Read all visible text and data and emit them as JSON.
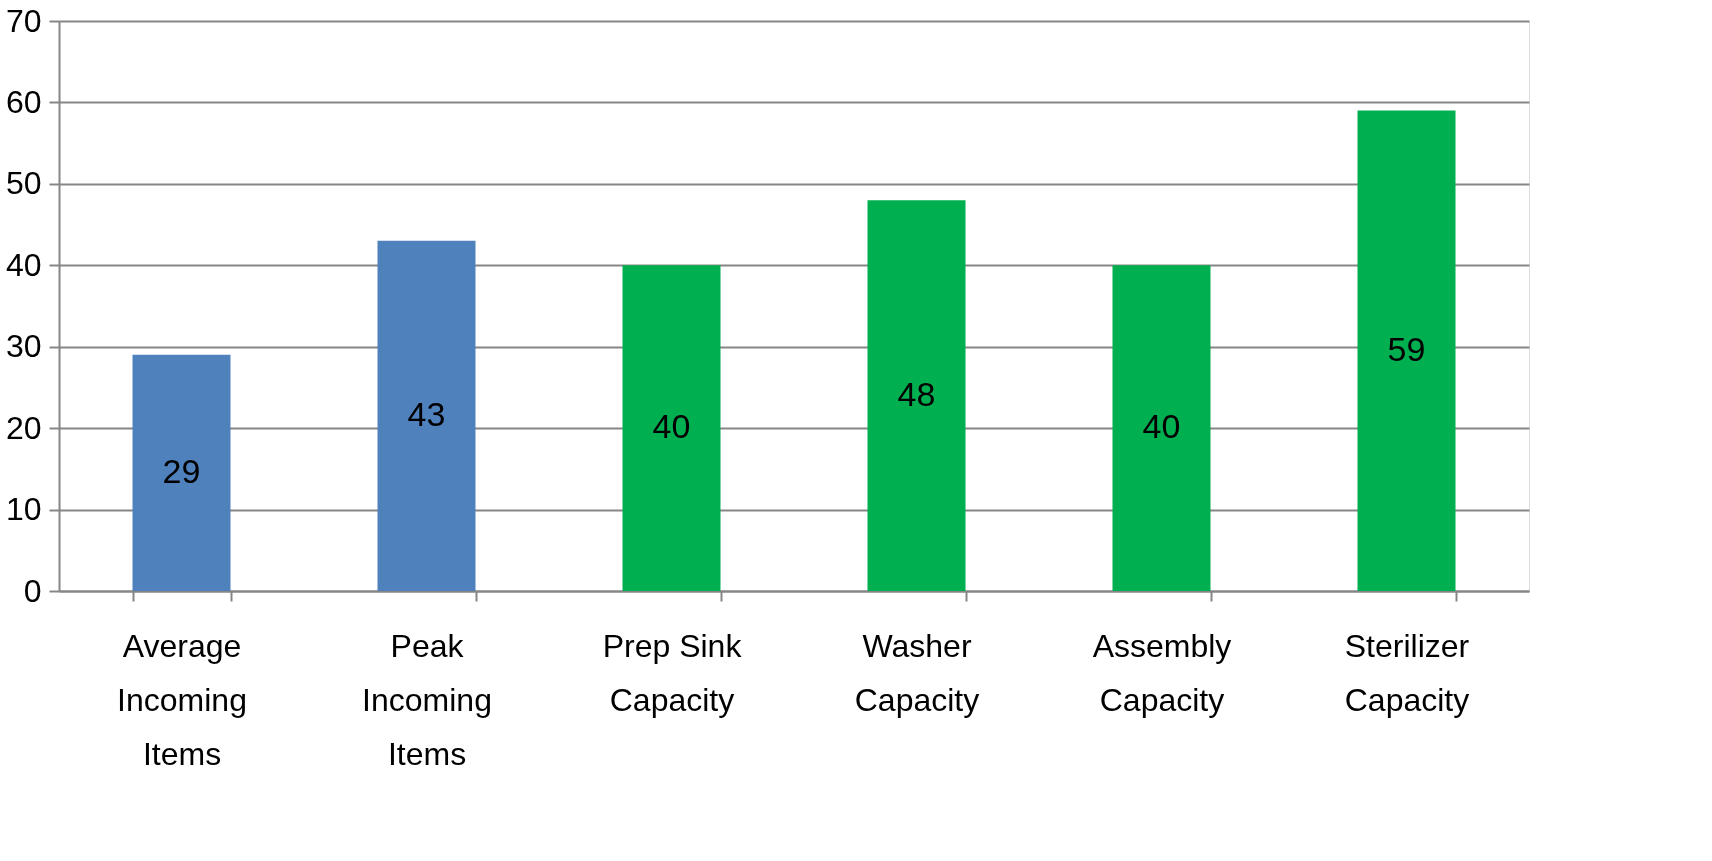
{
  "chart_data": {
    "type": "bar",
    "categories": [
      "Average Incoming Items",
      "Peak Incoming Items",
      "Prep Sink Capacity",
      "Washer Capacity",
      "Assembly Capacity",
      "Sterilizer Capacity"
    ],
    "values": [
      29,
      43,
      40,
      48,
      40,
      59
    ],
    "colors": [
      "#4f81bd",
      "#4f81bd",
      "#00b050",
      "#00b050",
      "#00b050",
      "#00b050"
    ],
    "ylim": [
      0,
      70
    ],
    "yticks": [
      0,
      10,
      20,
      30,
      40,
      50,
      60,
      70
    ],
    "grid": "y",
    "data_labels": true
  }
}
